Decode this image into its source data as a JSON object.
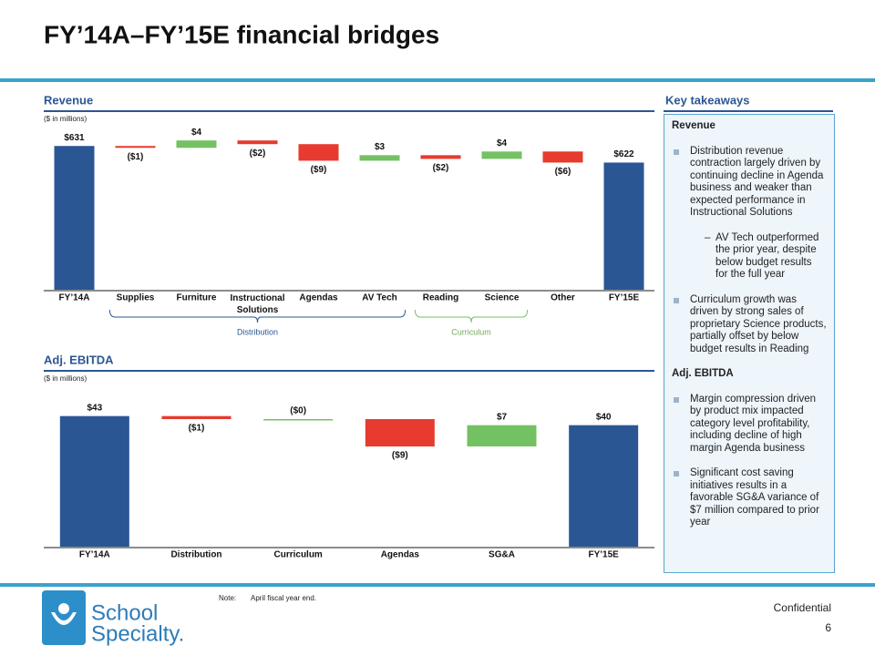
{
  "slide": {
    "title": "FY’14A–FY’15E financial bridges"
  },
  "chart_data": [
    {
      "type": "waterfall",
      "title": "Revenue",
      "subtitle": "($ in millions)",
      "categories": [
        "FY’14A",
        "Supplies",
        "Furniture",
        "Instructional Solutions",
        "Agendas",
        "AV Tech",
        "Reading",
        "Science",
        "Other",
        "FY’15E"
      ],
      "values": [
        631,
        -1,
        4,
        -2,
        -9,
        3,
        -2,
        4,
        -6,
        622
      ],
      "value_labels": [
        "$631",
        "($1)",
        "$4",
        "($2)",
        "($9)",
        "$3",
        "($2)",
        "$4",
        "($6)",
        "$622"
      ],
      "ylim": [
        553,
        641
      ],
      "colors": {
        "total": "#2b5694",
        "increase": "#74c163",
        "decrease": "#e63b2e"
      },
      "groups": [
        {
          "label": "Distribution",
          "start": 1,
          "end": 5
        },
        {
          "label": "Curriculum",
          "start": 6,
          "end": 7
        }
      ]
    },
    {
      "type": "waterfall",
      "title": "Adj. EBITDA",
      "subtitle": "($ in millions)",
      "categories": [
        "FY’14A",
        "Distribution",
        "Curriculum",
        "Agendas",
        "SG&A",
        "FY’15E"
      ],
      "values": [
        43,
        -1,
        0,
        -9,
        7,
        40
      ],
      "value_labels": [
        "$43",
        "($1)",
        "($0)",
        "($9)",
        "$7",
        "$40"
      ],
      "ylim": [
        0,
        48
      ],
      "colors": {
        "total": "#2b5694",
        "increase": "#74c163",
        "decrease": "#e63b2e"
      }
    }
  ],
  "takeaways": {
    "title": "Key takeaways",
    "sections": [
      {
        "heading": "Revenue",
        "bullets": [
          {
            "text": "Distribution revenue contraction largely driven by continuing decline in Agenda business and weaker than expected performance in Instructional Solutions",
            "sub": [
              "AV Tech outperformed the prior year, despite below budget results for the full year"
            ]
          },
          {
            "text": "Curriculum growth was driven by strong sales of proprietary Science products, partially offset by below budget results in Reading"
          }
        ]
      },
      {
        "heading": "Adj. EBITDA",
        "bullets": [
          {
            "text": "Margin compression driven by product mix impacted category level profitability, including decline of high margin Agenda business"
          },
          {
            "text": "Significant cost saving initiatives results in a favorable SG&A variance of $7 million compared to prior year"
          }
        ]
      }
    ]
  },
  "footer": {
    "note_label": "Note:",
    "note": "April fiscal year end.",
    "confidential": "Confidential",
    "page": "6",
    "logo": [
      "School",
      "Specialty."
    ]
  }
}
